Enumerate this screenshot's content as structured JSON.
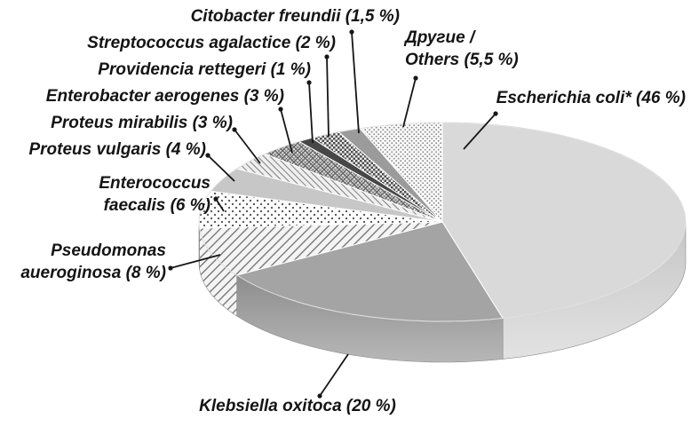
{
  "chart_data": {
    "type": "pie",
    "style": "3d-grayscale-patterns",
    "unit": "%",
    "start_angle_deg": -90,
    "direction": "clockwise",
    "total": 100,
    "slices": [
      {
        "id": "escherichia",
        "name": "Escherichia coli*",
        "value": 46,
        "label": "Escherichia coli* (46 %)",
        "fill": "#d9d9d9",
        "wall": "g-ecoli-wall"
      },
      {
        "id": "klebsiella",
        "name": "Klebsiella oxitoca",
        "value": 20,
        "label": "Klebsiella oxitoca (20 %)",
        "fill": "#a4a4a4",
        "wall": "g-kleb-wall"
      },
      {
        "id": "pseudomonas",
        "name": "Pseudomonas aueroginosa",
        "value": 8,
        "label": "Pseudomonas\naueroginosa (8 %)",
        "fill": "p-hatch",
        "wall": "p-hatch"
      },
      {
        "id": "enterococcus",
        "name": "Enterococcus faecalis",
        "value": 6,
        "label": "Enterococcus\nfaecalis (6 %)",
        "fill": "p-dots",
        "wall": "p-dots"
      },
      {
        "id": "proteus-vulgaris",
        "name": "Proteus vulgaris",
        "value": 4,
        "label": "Proteus vulgaris (4 %)",
        "fill": "#c7c7c7"
      },
      {
        "id": "proteus-mirabilis",
        "name": "Proteus mirabilis",
        "value": 3,
        "label": "Proteus mirabilis (3 %)",
        "fill": "p-diag"
      },
      {
        "id": "enterobacter",
        "name": "Enterobacter aerogenes",
        "value": 3,
        "label": "Enterobacter aerogenes (3 %)",
        "fill": "p-cross"
      },
      {
        "id": "providencia",
        "name": "Providencia rettegeri",
        "value": 1,
        "label": "Providencia rettegeri (1 %)",
        "fill": "#474747"
      },
      {
        "id": "streptococcus",
        "name": "Streptococcus agalactice",
        "value": 2,
        "label": "Streptococcus agalactice (2 %)",
        "fill": "p-checker"
      },
      {
        "id": "citobacter",
        "name": "Citobacter freundii",
        "value": 1.5,
        "label": "Citobacter freundii (1,5 %)",
        "fill": "#9b9b9b"
      },
      {
        "id": "others",
        "name": "Другие / Others",
        "value": 5.5,
        "label": "Другие /\nOthers (5,5 %)",
        "fill": "p-stipple"
      }
    ],
    "colors": {
      "leader_line": "#161616",
      "slice_separator": "#ffffff",
      "text": "#141414",
      "light_gray": "#d9d9d9",
      "mid_gray": "#a4a4a4",
      "dark_gray": "#474747"
    }
  }
}
